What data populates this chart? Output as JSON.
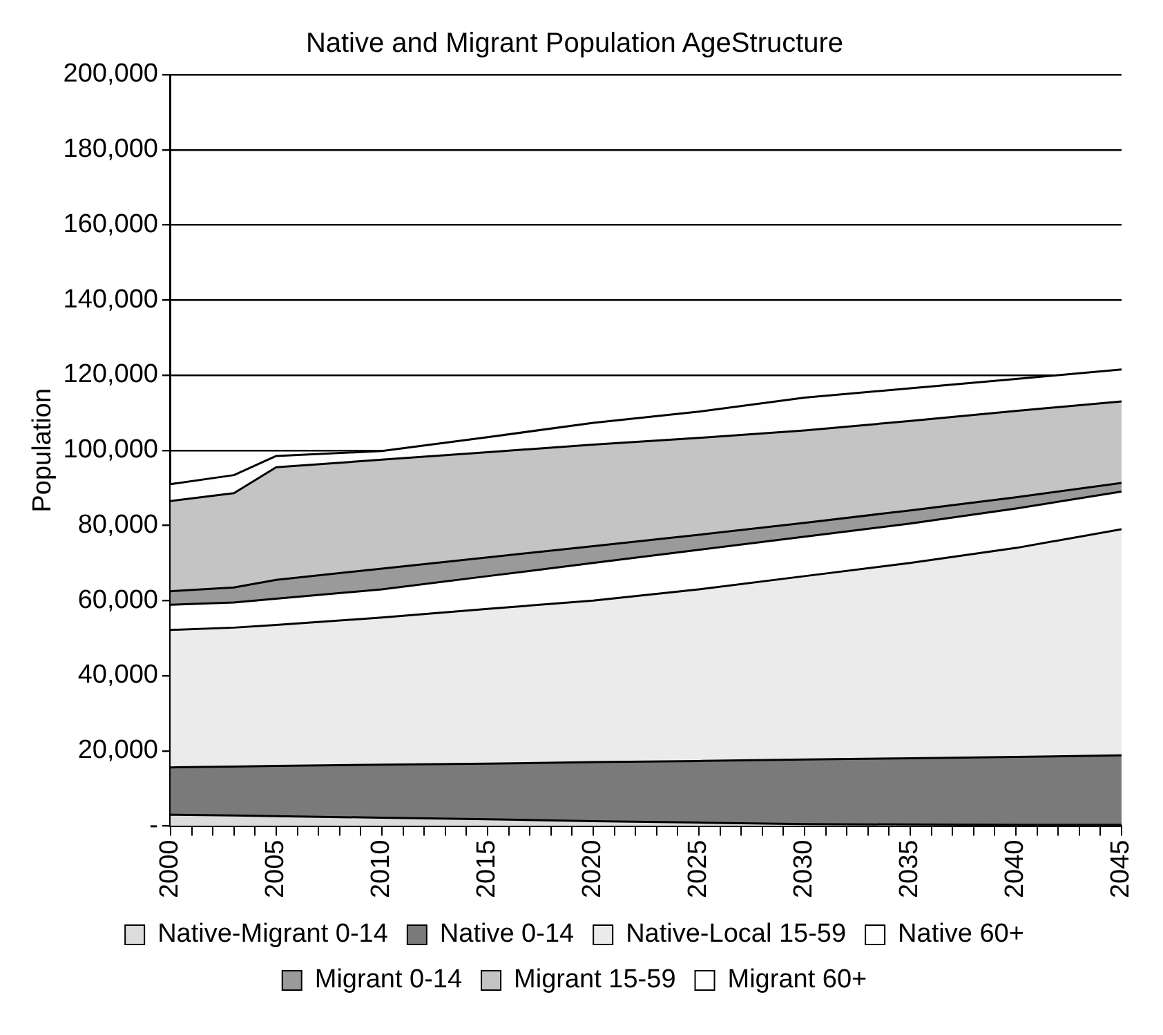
{
  "chart_data": {
    "type": "area",
    "title": "Native and Migrant Population AgeStructure",
    "ylabel": "Population",
    "x": [
      2000,
      2003,
      2005,
      2010,
      2015,
      2020,
      2025,
      2030,
      2035,
      2040,
      2045
    ],
    "stacked": true,
    "marker": "none",
    "grid": "y",
    "legend": "bottom",
    "xlim": [
      2000,
      2045
    ],
    "xticks": [
      2000,
      {
        "value": 2001,
        "label": null
      },
      {
        "value": 2002,
        "label": null
      },
      {
        "value": 2003,
        "label": null
      },
      {
        "value": 2004,
        "label": null
      },
      2005,
      {
        "value": 2006,
        "label": null
      },
      {
        "value": 2007,
        "label": null
      },
      {
        "value": 2008,
        "label": null
      },
      {
        "value": 2009,
        "label": null
      },
      2010,
      {
        "value": 2011,
        "label": null
      },
      {
        "value": 2012,
        "label": null
      },
      {
        "value": 2013,
        "label": null
      },
      {
        "value": 2014,
        "label": null
      },
      2015,
      {
        "value": 2016,
        "label": null
      },
      {
        "value": 2017,
        "label": null
      },
      {
        "value": 2018,
        "label": null
      },
      {
        "value": 2019,
        "label": null
      },
      2020,
      {
        "value": 2021,
        "label": null
      },
      {
        "value": 2022,
        "label": null
      },
      {
        "value": 2023,
        "label": null
      },
      {
        "value": 2024,
        "label": null
      },
      2025,
      {
        "value": 2026,
        "label": null
      },
      {
        "value": 2027,
        "label": null
      },
      {
        "value": 2028,
        "label": null
      },
      {
        "value": 2029,
        "label": null
      },
      2030,
      {
        "value": 2031,
        "label": null
      },
      {
        "value": 2032,
        "label": null
      },
      {
        "value": 2033,
        "label": null
      },
      {
        "value": 2034,
        "label": null
      },
      2035,
      {
        "value": 2036,
        "label": null
      },
      {
        "value": 2037,
        "label": null
      },
      {
        "value": 2038,
        "label": null
      },
      {
        "value": 2039,
        "label": null
      },
      2040,
      {
        "value": 2041,
        "label": null
      },
      {
        "value": 2042,
        "label": null
      },
      {
        "value": 2043,
        "label": null
      },
      {
        "value": 2044,
        "label": null
      },
      2045
    ],
    "ylim": [
      0,
      200000
    ],
    "yticks": [
      {
        "value": 0,
        "label": "-"
      },
      {
        "value": 20000,
        "label": "20,000"
      },
      {
        "value": 40000,
        "label": "40,000"
      },
      {
        "value": 60000,
        "label": "60,000"
      },
      {
        "value": 80000,
        "label": "80,000"
      },
      {
        "value": 100000,
        "label": "100,000"
      },
      {
        "value": 120000,
        "label": "120,000"
      },
      {
        "value": 140000,
        "label": "140,000"
      },
      {
        "value": 160000,
        "label": "160,000"
      },
      {
        "value": 180000,
        "label": "180,000"
      },
      {
        "value": 200000,
        "label": "200,000"
      }
    ],
    "series": [
      {
        "name": "Native-Migrant 0-14",
        "color": "#dcdcdc",
        "values": [
          3000,
          2800,
          2600,
          2200,
          1800,
          1300,
          900,
          500,
          400,
          300,
          300
        ]
      },
      {
        "name": "Native 0-14",
        "color": "#7a7a7a",
        "values": [
          12600,
          13000,
          13400,
          14100,
          14800,
          15700,
          16400,
          17200,
          17600,
          18100,
          18500
        ]
      },
      {
        "name": "Native-Local 15-59",
        "color": "#ebebeb",
        "values": [
          36600,
          37000,
          37500,
          39200,
          41200,
          43000,
          45700,
          48800,
          52000,
          55600,
          60200
        ]
      },
      {
        "name": "Native 60+",
        "color": "#ffffff",
        "values": [
          6700,
          6700,
          7000,
          7500,
          8700,
          10000,
          10500,
          10500,
          10500,
          10500,
          10000
        ]
      },
      {
        "name": "Migrant 0-14",
        "color": "#9a9a9a",
        "values": [
          3600,
          4000,
          5000,
          5500,
          5000,
          4500,
          4000,
          3700,
          3500,
          3000,
          2300
        ]
      },
      {
        "name": "Migrant 15-59",
        "color": "#c4c4c4",
        "values": [
          24000,
          25100,
          30000,
          29000,
          28000,
          27000,
          25800,
          24600,
          23800,
          23000,
          21700
        ]
      },
      {
        "name": "Migrant 60+",
        "color": "#fefefe",
        "values": [
          4500,
          4800,
          3000,
          2300,
          4000,
          5800,
          7000,
          8700,
          8700,
          8500,
          8500
        ]
      }
    ]
  }
}
